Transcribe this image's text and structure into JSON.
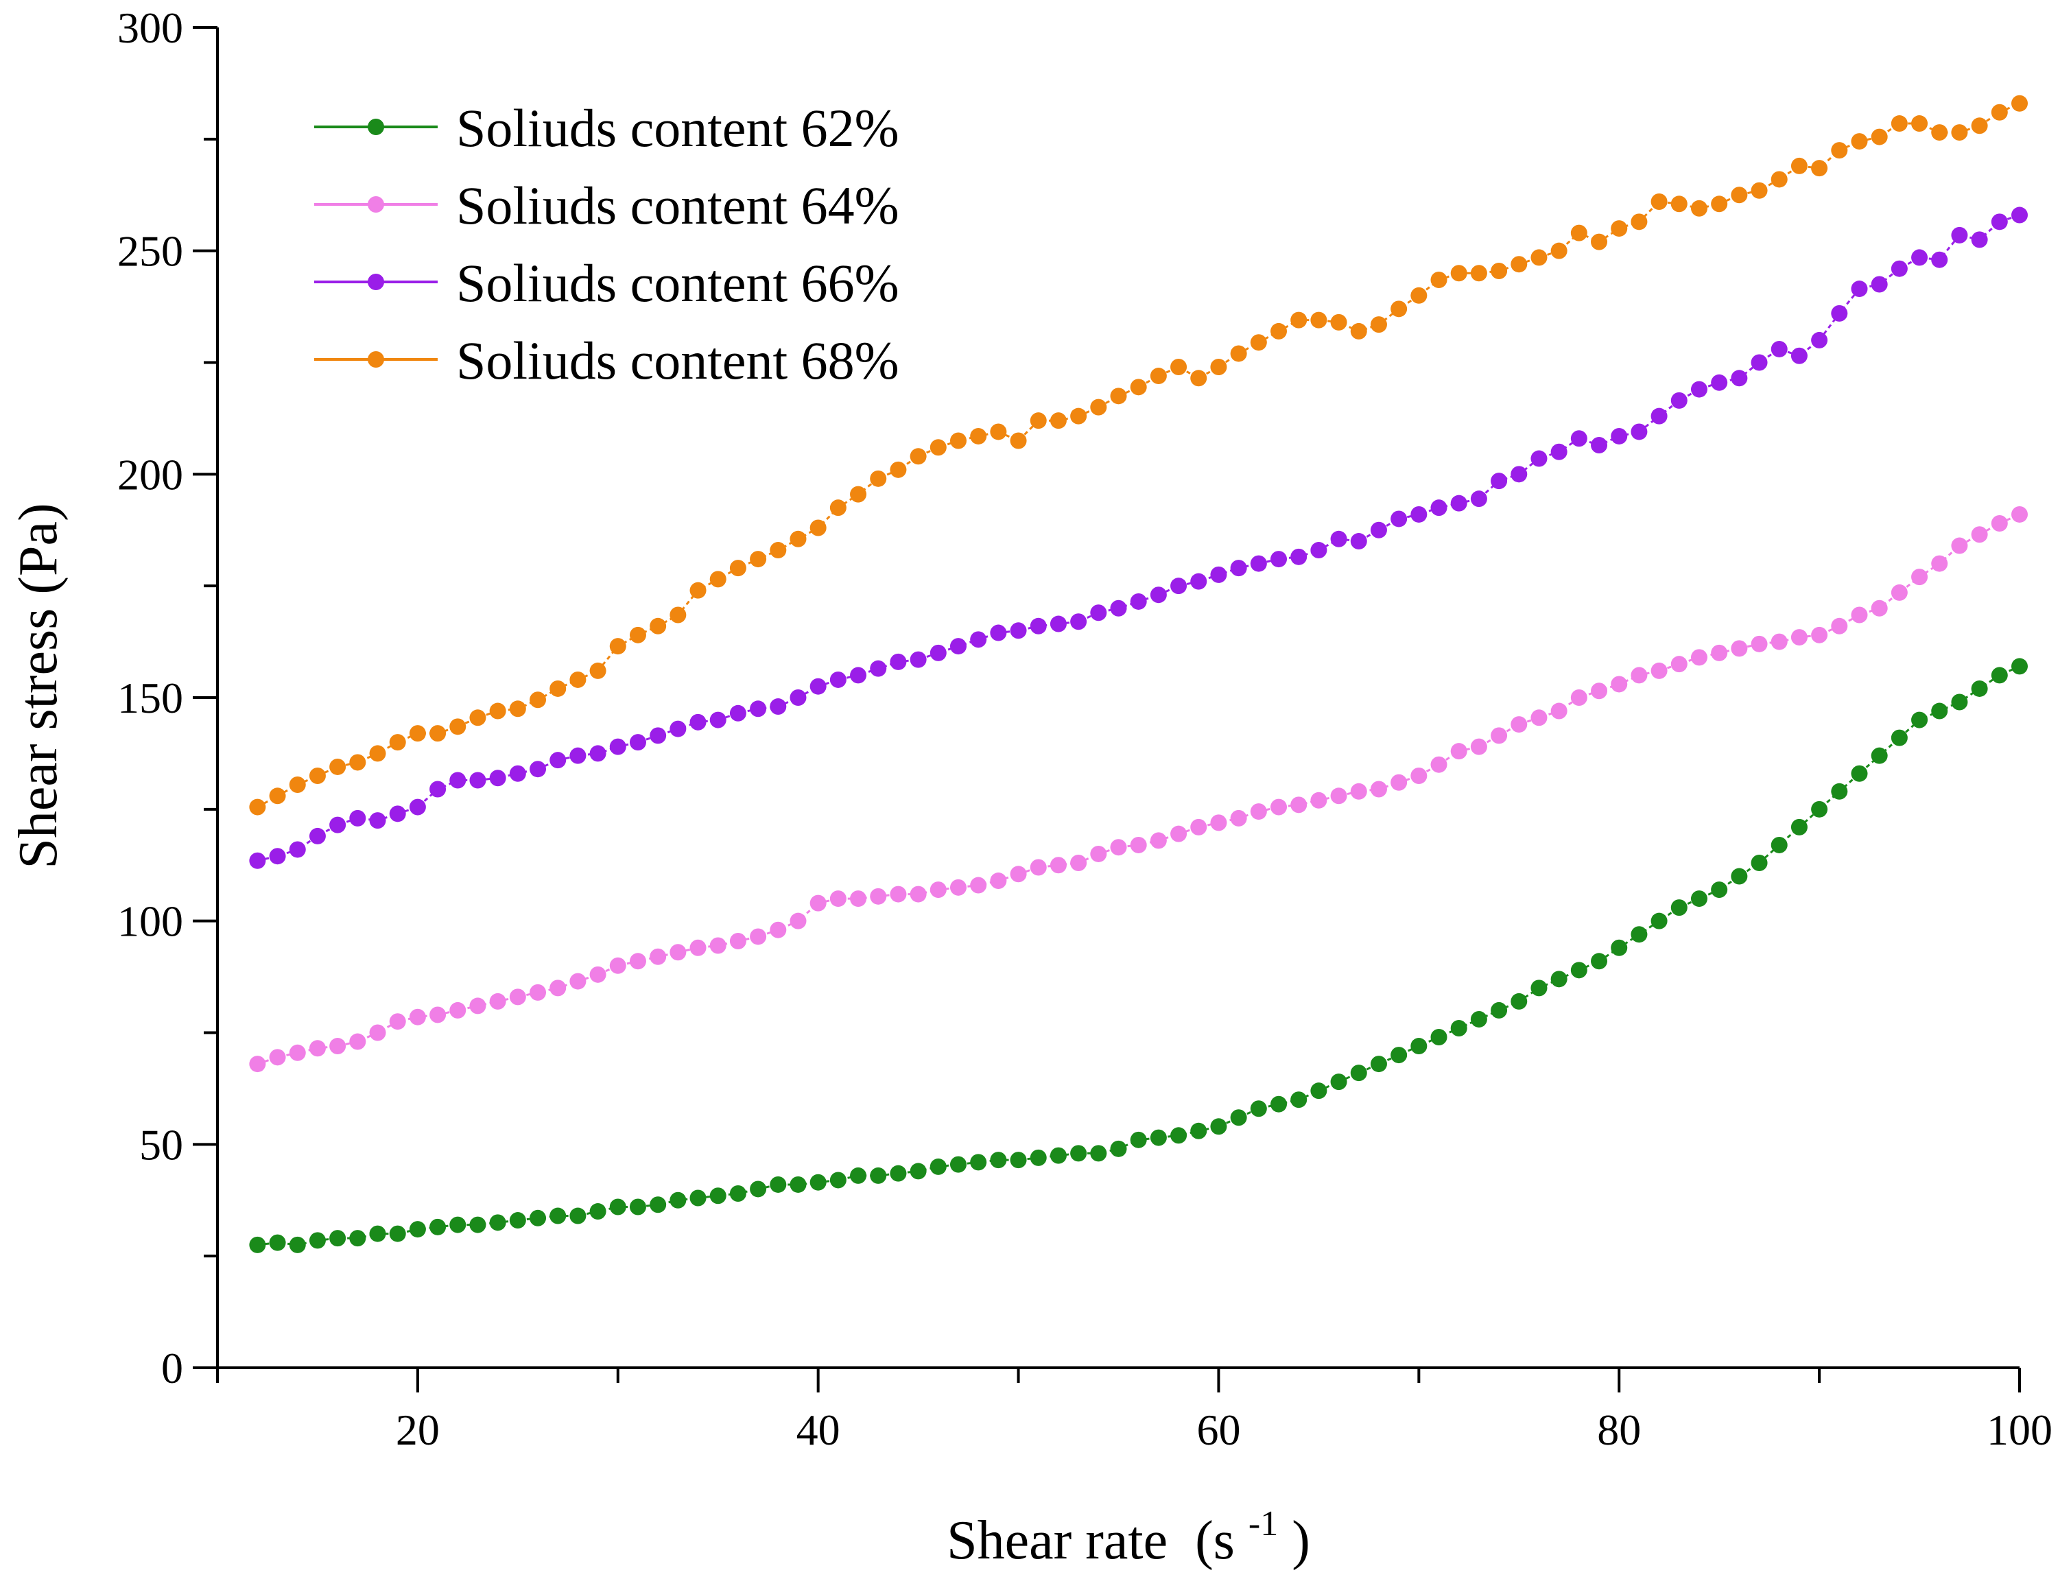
{
  "chart_data": {
    "type": "line",
    "title": "",
    "xlabel": "Shear rate",
    "xlabel_unit_base": "(s",
    "xlabel_unit_exp": "-1",
    "xlabel_unit_close": ")",
    "ylabel": "Shear stress (Pa)",
    "xlim": [
      10,
      100
    ],
    "ylim": [
      0,
      300
    ],
    "x_ticks": [
      20,
      40,
      60,
      80,
      100
    ],
    "x_tick_labels": [
      "20",
      "40",
      "60",
      "80",
      "100"
    ],
    "y_ticks": [
      0,
      50,
      100,
      150,
      200,
      250,
      300
    ],
    "y_tick_labels": [
      "0",
      "50",
      "100",
      "150",
      "200",
      "250",
      "300"
    ],
    "grid": false,
    "legend_position": "top-left",
    "x": [
      12,
      13,
      14,
      15,
      16,
      17,
      18,
      19,
      20,
      21,
      22,
      23,
      24,
      25,
      26,
      27,
      28,
      29,
      30,
      31,
      32,
      33,
      34,
      35,
      36,
      37,
      38,
      39,
      40,
      41,
      42,
      43,
      44,
      45,
      46,
      47,
      48,
      49,
      50,
      51,
      52,
      53,
      54,
      55,
      56,
      57,
      58,
      59,
      60,
      61,
      62,
      63,
      64,
      65,
      66,
      67,
      68,
      69,
      70,
      71,
      72,
      73,
      74,
      75,
      76,
      77,
      78,
      79,
      80,
      81,
      82,
      83,
      84,
      85,
      86,
      87,
      88,
      89,
      90,
      91,
      92,
      93,
      94,
      95,
      96,
      97,
      98,
      99,
      100
    ],
    "series": [
      {
        "name": "Soliuds content 62%",
        "color": "#1a8a1a",
        "values": [
          27.5,
          28,
          27.5,
          28.5,
          29,
          29,
          30,
          30,
          31,
          31.5,
          32,
          32,
          32.5,
          33,
          33.5,
          34,
          34,
          35,
          36,
          36,
          36.5,
          37.5,
          38,
          38.5,
          39,
          40,
          41,
          41,
          41.5,
          42,
          43,
          43,
          43.5,
          44,
          45,
          45.5,
          46,
          46.5,
          46.5,
          47,
          47.5,
          48,
          48,
          49,
          51,
          51.5,
          52,
          53,
          54,
          56,
          58,
          59,
          60,
          62,
          64,
          66,
          68,
          70,
          72,
          74,
          76,
          78,
          80,
          82,
          85,
          87,
          89,
          91,
          94,
          97,
          100,
          103,
          105,
          107,
          110,
          113,
          117,
          121,
          125,
          129,
          133,
          137,
          141,
          145,
          147,
          149,
          152,
          155,
          157
        ]
      },
      {
        "name": "Soliuds content 64%",
        "color": "#f07fe6",
        "values": [
          68,
          69.5,
          70.5,
          71.5,
          72,
          73,
          75,
          77.5,
          78.5,
          79,
          80,
          81,
          82,
          83,
          84,
          85,
          86.5,
          88,
          90,
          91,
          92,
          93,
          94,
          94.5,
          95.5,
          96.5,
          98,
          100,
          104,
          105,
          105,
          105.5,
          106,
          106,
          107,
          107.5,
          108,
          109,
          110.5,
          112,
          112.5,
          113,
          115,
          116.5,
          117,
          118,
          119.5,
          121,
          122,
          123,
          124.5,
          125.5,
          126,
          127,
          128,
          129,
          129.5,
          131,
          132.5,
          135,
          138,
          139,
          141.5,
          144,
          145.5,
          147,
          150,
          151.5,
          153,
          155,
          156,
          157.5,
          159,
          160,
          161,
          162,
          162.5,
          163.5,
          164,
          166,
          168.5,
          170,
          173.5,
          177,
          180,
          184,
          186.5,
          189,
          191
        ]
      },
      {
        "name": "Soliuds content 66%",
        "color": "#9a1ee8",
        "values": [
          113.5,
          114.5,
          116,
          119,
          121.5,
          123,
          122.5,
          124,
          125.5,
          129.5,
          131.5,
          131.5,
          132,
          133,
          134,
          136,
          137,
          137.5,
          139,
          140,
          141.5,
          143,
          144.5,
          145,
          146.5,
          147.5,
          148,
          150,
          152.5,
          154,
          155,
          156.5,
          158,
          158.5,
          160,
          161.5,
          163,
          164.5,
          165,
          166,
          166.5,
          167,
          169,
          170,
          171.5,
          173,
          175,
          176,
          177.5,
          179,
          180,
          181,
          181.5,
          183,
          185.5,
          185,
          187.5,
          190,
          191,
          192.5,
          193.5,
          194.5,
          198.5,
          200,
          203.5,
          205,
          208,
          206.5,
          208.5,
          209.5,
          213,
          216.5,
          219,
          220.5,
          221.5,
          225,
          228,
          226.5,
          230,
          236,
          241.5,
          242.5,
          246,
          248.5,
          248,
          253.5,
          252.5,
          256.5,
          258
        ]
      },
      {
        "name": "Soliuds content 68%",
        "color": "#f0860f",
        "values": [
          125.5,
          128,
          130.5,
          132.5,
          134.5,
          135.5,
          137.5,
          140,
          142,
          142,
          143.5,
          145.5,
          147,
          147.5,
          149.5,
          152,
          154,
          156,
          161.5,
          164,
          166,
          168.5,
          174,
          176.5,
          179,
          181,
          183,
          185.5,
          188,
          192.5,
          195.5,
          199,
          201,
          204,
          206,
          207.5,
          208.5,
          209.5,
          207.5,
          212,
          212,
          213,
          215,
          217.5,
          219.5,
          222,
          224,
          221.5,
          224,
          227,
          229.5,
          232,
          234.5,
          234.5,
          234,
          232,
          233.5,
          237,
          240,
          243.5,
          245,
          245,
          245.5,
          247,
          248.5,
          250,
          254,
          252,
          255,
          256.5,
          261,
          260.5,
          259.5,
          260.5,
          262.5,
          263.5,
          266,
          269,
          268.5,
          272.5,
          274.5,
          275.5,
          278.5,
          278.5,
          276.5,
          276.5,
          278,
          281,
          283
        ]
      }
    ]
  }
}
